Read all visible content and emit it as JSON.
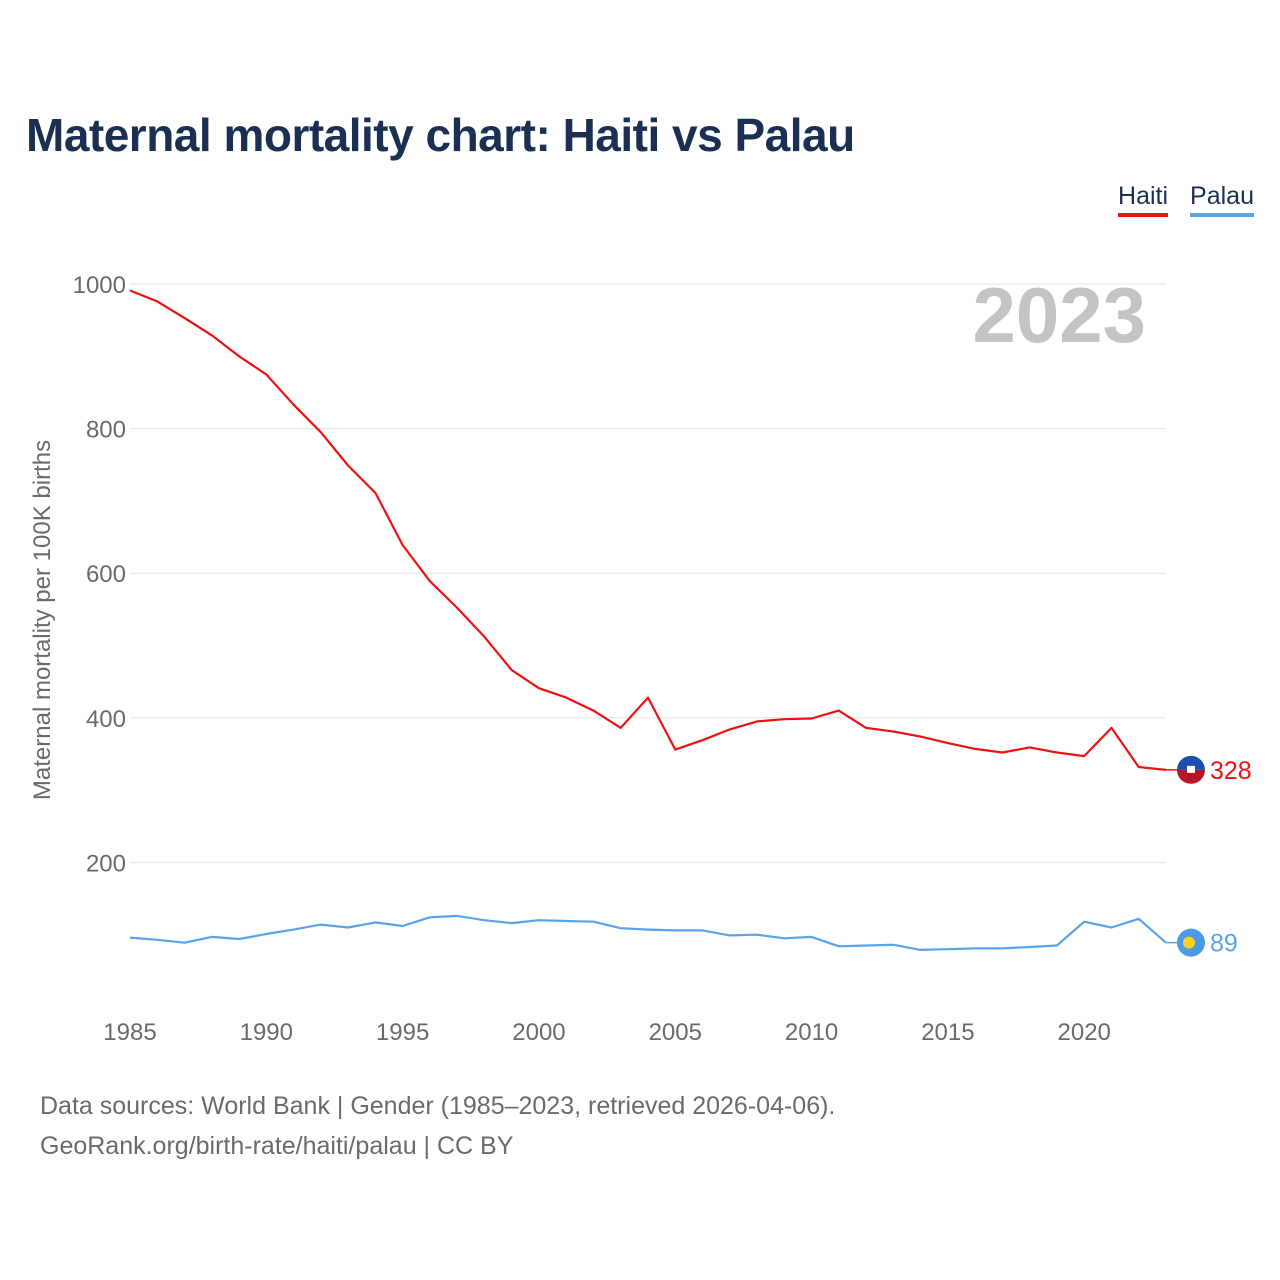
{
  "title": "Maternal mortality chart: Haiti vs Palau",
  "legend": {
    "haiti": "Haiti",
    "palau": "Palau"
  },
  "source": {
    "line1": "Data sources: World Bank | Gender (1985–2023, retrieved 2026-04-06).",
    "line2": "GeoRank.org/birth-rate/haiti/palau | CC BY"
  },
  "chart_data": {
    "type": "line",
    "year_label": "2023",
    "ylabel": "Maternal mortality per 100K births",
    "xlim": [
      1985,
      2023
    ],
    "ylim": [
      0,
      1000
    ],
    "y_ticks": [
      200,
      400,
      600,
      800,
      1000
    ],
    "x_ticks": [
      1985,
      1990,
      1995,
      2000,
      2005,
      2010,
      2015,
      2020
    ],
    "x": [
      1985,
      1986,
      1987,
      1988,
      1989,
      1990,
      1991,
      1992,
      1993,
      1994,
      1995,
      1996,
      1997,
      1998,
      1999,
      2000,
      2001,
      2002,
      2003,
      2004,
      2005,
      2006,
      2007,
      2008,
      2009,
      2010,
      2011,
      2012,
      2013,
      2014,
      2015,
      2016,
      2017,
      2018,
      2019,
      2020,
      2021,
      2022,
      2023
    ],
    "series": [
      {
        "name": "Haiti",
        "color": "#ee1111",
        "end_label": "328",
        "values": [
          991,
          976,
          953,
          929,
          900,
          875,
          833,
          795,
          749,
          711,
          639,
          589,
          552,
          512,
          466,
          441,
          428,
          410,
          386,
          428,
          356,
          369,
          384,
          395,
          398,
          399,
          410,
          386,
          381,
          374,
          365,
          357,
          352,
          359,
          352,
          347,
          386,
          332,
          328
        ]
      },
      {
        "name": "Palau",
        "color": "#5aa3ea",
        "end_label": "89",
        "values": [
          96,
          93,
          89,
          97,
          94,
          101,
          107,
          114,
          110,
          117,
          112,
          124,
          126,
          120,
          116,
          120,
          119,
          118,
          109,
          107,
          106,
          106,
          99,
          100,
          95,
          97,
          84,
          85,
          86,
          79,
          80,
          81,
          81,
          83,
          85,
          118,
          110,
          122,
          89
        ]
      }
    ]
  }
}
